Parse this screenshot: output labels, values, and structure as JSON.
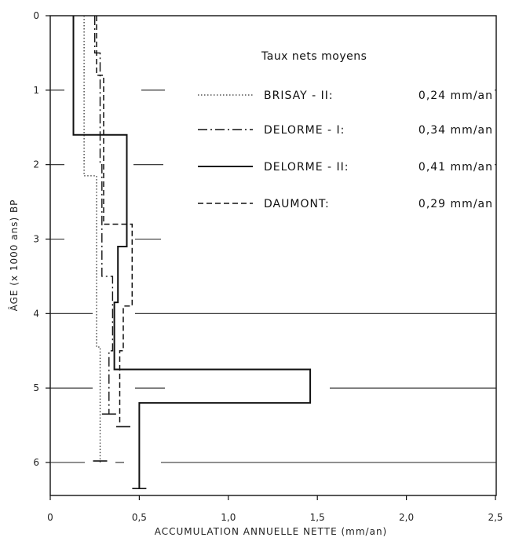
{
  "chart_data": {
    "type": "line",
    "xlabel": "ACCUMULATION ANNUELLE NETTE (mm/an)",
    "ylabel": "ÂGE (x 1000 ans) BP",
    "xlim": [
      0,
      2.5
    ],
    "ylim": [
      0,
      6.5
    ],
    "y_inverted": true,
    "x_ticks": [
      "0",
      "0,5",
      "1,0",
      "1,5",
      "2,0",
      "2,5"
    ],
    "x_tick_values": [
      0,
      0.5,
      1.0,
      1.5,
      2.0,
      2.5
    ],
    "y_ticks": [
      "0",
      "1",
      "2",
      "3",
      "4",
      "5",
      "6"
    ],
    "y_tick_values": [
      0,
      1,
      2,
      3,
      4,
      5,
      6
    ],
    "grid": "partial horizontal lines at integer ages",
    "legend_title": "Taux nets moyens",
    "legend_placement": "top-right",
    "series": [
      {
        "name": "BRISAY - II:",
        "rate": "0,24 mm/an",
        "style": "dotted",
        "steps": [
          [
            0.19,
            0
          ],
          [
            0.19,
            2.15
          ],
          [
            0.26,
            2.15
          ],
          [
            0.26,
            4.45
          ],
          [
            0.28,
            4.45
          ],
          [
            0.28,
            6.0
          ]
        ]
      },
      {
        "name": "DELORME - I:",
        "rate": "0,34 mm/an",
        "style": "dashdot",
        "steps": [
          [
            0.25,
            0
          ],
          [
            0.25,
            0.5
          ],
          [
            0.28,
            0.5
          ],
          [
            0.28,
            2.0
          ],
          [
            0.29,
            2.0
          ],
          [
            0.29,
            3.5
          ],
          [
            0.35,
            3.5
          ],
          [
            0.35,
            4.5
          ],
          [
            0.33,
            4.5
          ],
          [
            0.33,
            5.35
          ]
        ]
      },
      {
        "name": "DELORME - II:",
        "rate": "0,41 mm/an",
        "style": "solid",
        "steps": [
          [
            0.13,
            0
          ],
          [
            0.13,
            1.6
          ],
          [
            0.43,
            1.6
          ],
          [
            0.43,
            3.1
          ],
          [
            0.38,
            3.1
          ],
          [
            0.38,
            3.85
          ],
          [
            0.36,
            3.85
          ],
          [
            0.36,
            4.75
          ],
          [
            1.46,
            4.75
          ],
          [
            1.46,
            5.2
          ],
          [
            0.5,
            5.2
          ],
          [
            0.5,
            6.35
          ]
        ]
      },
      {
        "name": "DAUMONT:",
        "rate": "0,29 mm/an",
        "style": "dashed",
        "steps": [
          [
            0.26,
            0
          ],
          [
            0.26,
            0.8
          ],
          [
            0.3,
            0.8
          ],
          [
            0.3,
            2.8
          ],
          [
            0.46,
            2.8
          ],
          [
            0.46,
            3.9
          ],
          [
            0.41,
            3.9
          ],
          [
            0.41,
            4.5
          ],
          [
            0.39,
            4.5
          ],
          [
            0.39,
            5.5
          ]
        ]
      }
    ],
    "end_caps": [
      {
        "x": 0.33,
        "y": 5.35
      },
      {
        "x": 0.41,
        "y": 5.52
      },
      {
        "x": 0.5,
        "y": 6.35
      },
      {
        "x": 0.28,
        "y": 5.98
      }
    ]
  }
}
